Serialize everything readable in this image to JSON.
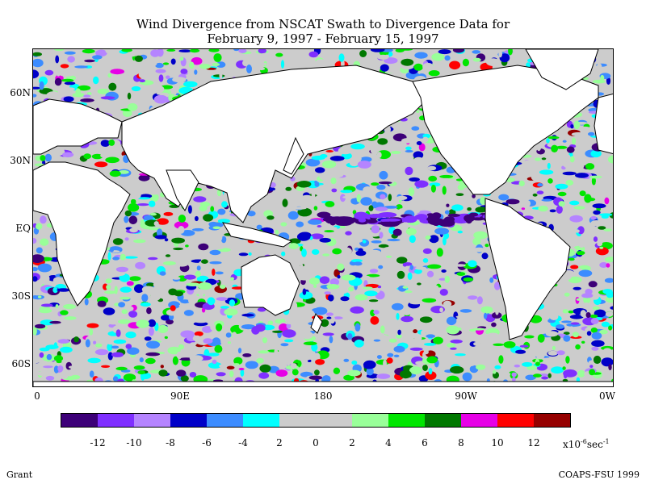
{
  "title_line1": "Wind Divergence from NSCAT Swath to Divergence Data for",
  "title_line2": "February 9, 1997 - February 15, 1997",
  "lat_labels": [
    "60N",
    "30N",
    "EQ",
    "30S",
    "60S"
  ],
  "lon_labels": [
    "0",
    "90E",
    "180",
    "90W",
    "0W"
  ],
  "colorbar": {
    "colors": [
      "#3d0078",
      "#7f2fff",
      "#b584ff",
      "#0000c8",
      "#3c8cff",
      "#00ffff",
      "#cccccc",
      "#cccccc",
      "#99ff99",
      "#00e600",
      "#007800",
      "#e600e6",
      "#ff0000",
      "#960000"
    ],
    "tick_labels": [
      "-12",
      "-10",
      "-8",
      "-6",
      "-4",
      "2",
      "0",
      "2",
      "4",
      "6",
      "8",
      "10",
      "12"
    ],
    "units_prefix": "x10",
    "units_exp": "-6",
    "units_suffix": "sec",
    "units_exp2": "-1"
  },
  "footer": {
    "author": "Grant",
    "credit": "COAPS-FSU 1999"
  },
  "map_data": {
    "lon_range": [
      0,
      360
    ],
    "lat_range": [
      -75,
      75
    ]
  }
}
